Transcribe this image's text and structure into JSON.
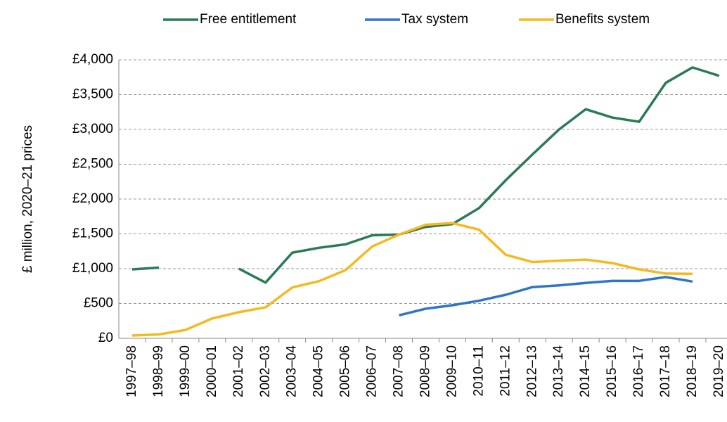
{
  "chart_data": {
    "type": "line",
    "y_label": "£ million, 2020–21 prices",
    "categories": [
      "1997–98",
      "1998–99",
      "1999–00",
      "2000–01",
      "2001–02",
      "2002–03",
      "2003–04",
      "2004–05",
      "2005–06",
      "2006–07",
      "2007–08",
      "2008–09",
      "2009–10",
      "2010–11",
      "2011–12",
      "2012–13",
      "2013–14",
      "2014–15",
      "2015–16",
      "2016–17",
      "2017–18",
      "2018–19",
      "2019–20"
    ],
    "series": [
      {
        "name": "Free entitlement",
        "color": "#2a7a55",
        "values": [
          990,
          1015,
          null,
          null,
          1000,
          800,
          1230,
          1300,
          1350,
          1480,
          1490,
          1600,
          1640,
          1870,
          2270,
          2640,
          3000,
          3290,
          3170,
          3110,
          3670,
          3890,
          3770
        ]
      },
      {
        "name": "Tax system",
        "color": "#2e75c7",
        "values": [
          null,
          null,
          null,
          null,
          null,
          null,
          null,
          null,
          null,
          null,
          330,
          425,
          475,
          540,
          625,
          735,
          760,
          795,
          825,
          825,
          880,
          815,
          null
        ]
      },
      {
        "name": "Benefits system",
        "color": "#f5b920",
        "values": [
          40,
          55,
          120,
          285,
          375,
          445,
          730,
          820,
          980,
          1320,
          1490,
          1630,
          1655,
          1560,
          1200,
          1095,
          1115,
          1130,
          1080,
          990,
          930,
          925,
          null
        ]
      }
    ],
    "ylim": [
      0,
      4000
    ],
    "yticks": [
      {
        "value": 0,
        "label": "£0"
      },
      {
        "value": 500,
        "label": "£500"
      },
      {
        "value": 1000,
        "label": "£1,000"
      },
      {
        "value": 1500,
        "label": "£1,500"
      },
      {
        "value": 2000,
        "label": "£2,000"
      },
      {
        "value": 2500,
        "label": "£2,500"
      },
      {
        "value": 3000,
        "label": "£3,000"
      },
      {
        "value": 3500,
        "label": "£3,500"
      },
      {
        "value": 4000,
        "label": "£4,000"
      }
    ],
    "grid": true,
    "legend": "top"
  }
}
